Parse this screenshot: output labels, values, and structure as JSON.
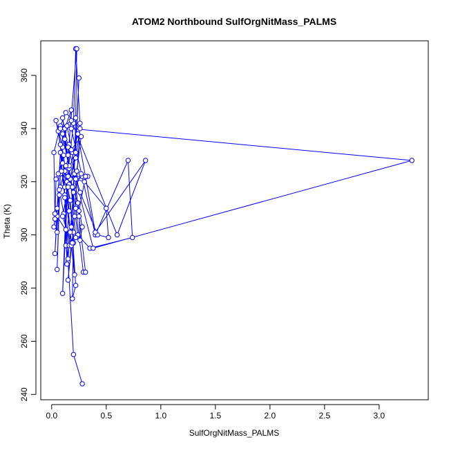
{
  "chart_data": {
    "type": "line",
    "title": "ATOM2 Northbound SulfOrgNitMass_PALMS",
    "xlabel": "SulfOrgNitMass_PALMS",
    "ylabel": "Theta (K)",
    "xlim": [
      -0.1,
      3.45
    ],
    "ylim": [
      238,
      373
    ],
    "x_ticks": [
      0.0,
      0.5,
      1.0,
      1.5,
      2.0,
      2.5,
      3.0
    ],
    "x_tick_labels": [
      "0.0",
      "0.5",
      "1.0",
      "1.5",
      "2.0",
      "2.5",
      "3.0"
    ],
    "y_ticks": [
      240,
      260,
      280,
      300,
      320,
      340,
      360
    ],
    "y_tick_labels": [
      "240",
      "260",
      "280",
      "300",
      "320",
      "340",
      "360"
    ],
    "markers": "open-circle",
    "series": [
      {
        "color": "#0000ff",
        "points": [
          [
            0.28,
            244
          ],
          [
            0.2,
            255
          ],
          [
            0.15,
            290
          ],
          [
            0.12,
            315
          ],
          [
            0.1,
            333
          ],
          [
            0.04,
            343
          ],
          [
            0.08,
            334
          ],
          [
            0.14,
            320
          ],
          [
            0.2,
            301
          ],
          [
            0.19,
            276
          ],
          [
            0.22,
            281
          ],
          [
            0.17,
            313
          ],
          [
            0.1,
            327
          ],
          [
            0.06,
            339
          ],
          [
            0.12,
            324
          ],
          [
            0.18,
            297
          ],
          [
            0.15,
            283
          ],
          [
            0.21,
            307
          ],
          [
            0.26,
            342
          ],
          [
            0.22,
            370
          ],
          [
            0.2,
            342
          ],
          [
            0.14,
            320
          ],
          [
            0.1,
            278
          ],
          [
            0.13,
            302
          ],
          [
            0.16,
            334
          ],
          [
            0.18,
            347
          ],
          [
            0.12,
            340
          ],
          [
            0.08,
            323
          ],
          [
            0.05,
            287
          ],
          [
            0.07,
            315
          ],
          [
            0.1,
            338
          ],
          [
            0.16,
            325
          ],
          [
            0.22,
            310
          ],
          [
            0.29,
            286
          ],
          [
            0.31,
            286
          ],
          [
            0.25,
            307
          ],
          [
            0.19,
            331
          ],
          [
            0.14,
            341
          ],
          [
            0.12,
            336
          ],
          [
            0.17,
            321
          ],
          [
            0.24,
            300
          ],
          [
            0.35,
            295
          ],
          [
            0.74,
            299
          ],
          [
            0.7,
            328
          ],
          [
            0.4,
            300
          ],
          [
            0.18,
            340
          ],
          [
            3.3,
            328
          ],
          [
            0.38,
            295
          ],
          [
            0.22,
            321
          ],
          [
            0.33,
            322
          ],
          [
            0.28,
            322
          ],
          [
            0.14,
            322
          ],
          [
            0.3,
            320
          ],
          [
            0.5,
            310
          ],
          [
            0.52,
            299
          ],
          [
            0.42,
            300
          ],
          [
            0.26,
            316
          ],
          [
            0.15,
            333
          ],
          [
            0.1,
            344
          ],
          [
            0.16,
            326
          ],
          [
            0.22,
            299
          ],
          [
            0.2,
            297
          ],
          [
            0.05,
            307
          ],
          [
            0.03,
            293
          ],
          [
            0.05,
            310
          ],
          [
            0.08,
            331
          ],
          [
            0.12,
            314
          ],
          [
            0.14,
            289
          ],
          [
            0.18,
            303
          ],
          [
            0.25,
            359
          ],
          [
            0.22,
            331
          ],
          [
            0.16,
            319
          ],
          [
            0.21,
            323
          ],
          [
            0.12,
            318
          ],
          [
            0.09,
            324
          ],
          [
            0.17,
            301
          ],
          [
            0.15,
            291
          ],
          [
            0.13,
            296
          ],
          [
            0.16,
            309
          ],
          [
            0.11,
            330
          ],
          [
            0.06,
            323
          ],
          [
            0.04,
            321
          ],
          [
            0.03,
            306
          ],
          [
            0.02,
            303
          ],
          [
            0.08,
            318
          ],
          [
            0.13,
            326
          ],
          [
            0.18,
            332
          ],
          [
            0.27,
            337
          ],
          [
            0.23,
            324
          ],
          [
            0.19,
            318
          ],
          [
            0.24,
            312
          ],
          [
            0.28,
            303
          ],
          [
            0.26,
            298
          ],
          [
            0.25,
            309
          ],
          [
            0.31,
            322
          ],
          [
            0.27,
            323
          ],
          [
            0.2,
            316
          ],
          [
            0.16,
            296
          ],
          [
            0.11,
            308
          ],
          [
            0.07,
            317
          ],
          [
            0.05,
            301
          ],
          [
            0.03,
            308
          ],
          [
            0.02,
            331
          ],
          [
            0.08,
            341
          ],
          [
            0.13,
            346
          ],
          [
            0.26,
            340
          ],
          [
            0.22,
            329
          ],
          [
            0.15,
            318
          ],
          [
            0.1,
            307
          ],
          [
            0.18,
            296
          ],
          [
            0.21,
            285
          ],
          [
            0.19,
            297
          ],
          [
            0.22,
            344
          ],
          [
            0.23,
            370
          ],
          [
            0.15,
            330
          ],
          [
            0.08,
            340
          ],
          [
            0.18,
            343
          ],
          [
            0.6,
            300
          ],
          [
            0.86,
            328
          ],
          [
            0.4,
            301
          ],
          [
            0.24,
            338
          ],
          [
            0.15,
            322
          ]
        ]
      }
    ]
  }
}
